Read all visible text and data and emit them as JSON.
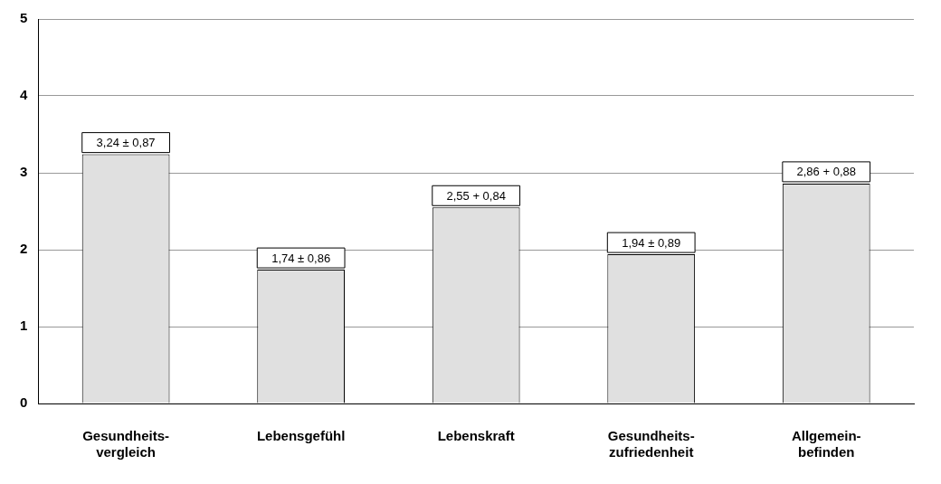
{
  "chart_data": {
    "type": "bar",
    "categories": [
      "Gesundheits-\nvergleich",
      "Lebensgefühl",
      "Lebenskraft",
      "Gesundheits-\nzufriedenheit",
      "Allgemein-\nbefinden"
    ],
    "values": [
      3.24,
      1.74,
      2.55,
      1.94,
      2.86
    ],
    "value_labels": [
      "3,24 ± 0,87",
      "1,74 ± 0,86",
      "2,55 + 0,84",
      "1,94 ± 0,89",
      "2,86 + 0,88"
    ],
    "color": "#e0e0e0",
    "ylim": [
      0,
      5
    ],
    "yticks": [
      0,
      1,
      2,
      3,
      4,
      5
    ],
    "grid": "y",
    "legend": false
  }
}
